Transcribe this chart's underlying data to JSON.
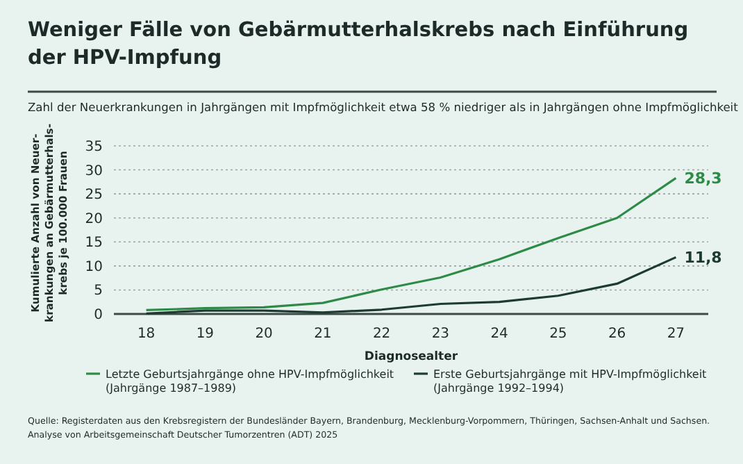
{
  "chart_data": {
    "type": "line",
    "title": "Weniger Fälle von Gebärmutterhalskrebs nach Einführung\nder HPV-Impfung",
    "subtitle": "Zahl der Neuerkrankungen in Jahrgängen mit Impfmöglichkeit etwa 58 % niedriger als in Jahrgängen ohne Impfmöglichkeit",
    "xlabel": "Diagnosealter",
    "ylabel": "Kumulierte Anzahl von Neuer-\nkrankungen an Gebärmutterhals-\nkrebs je 100.000 Frauen",
    "categories": [
      "18",
      "19",
      "20",
      "21",
      "22",
      "23",
      "24",
      "25",
      "26",
      "27"
    ],
    "series": [
      {
        "name": "Letzte Geburtsjahrgänge ohne HPV-Impfmöglichkeit\n(Jahrgänge 1987–1989)",
        "color": "#2e8b47",
        "values": [
          0.8,
          1.2,
          1.4,
          2.3,
          5.1,
          7.6,
          11.4,
          15.8,
          20,
          28.3
        ],
        "value_labels": [
          null,
          null,
          null,
          null,
          null,
          null,
          null,
          null,
          null,
          "28,3"
        ]
      },
      {
        "name": "Erste Geburtsjahrgänge mit HPV-Impfmöglichkeit\n(Jahrgänge 1992–1994)",
        "color": "#1d3b33",
        "values": [
          0.1,
          0.7,
          0.7,
          0.3,
          0.9,
          2.1,
          2.5,
          3.8,
          6.3,
          11.8
        ],
        "value_labels": [
          null,
          null,
          null,
          null,
          null,
          null,
          null,
          null,
          null,
          "11,8"
        ]
      }
    ],
    "ylim": [
      0,
      35
    ],
    "yticks": [
      0,
      5,
      10,
      15,
      20,
      25,
      30,
      35
    ],
    "grid": "y",
    "legend": "bottom",
    "marker": "none",
    "line_style": "solid",
    "annotations": [
      "Quelle: Registerdaten aus den Krebsregistern der Bundesländer Bayern, Brandenburg, Mecklenburg-Vorpommern, Thüringen, Sachsen-Anhalt und Sachsen.\nAnalyse von Arbeitsgemeinschaft Deutscher Tumorzentren (ADT) 2025"
    ]
  }
}
